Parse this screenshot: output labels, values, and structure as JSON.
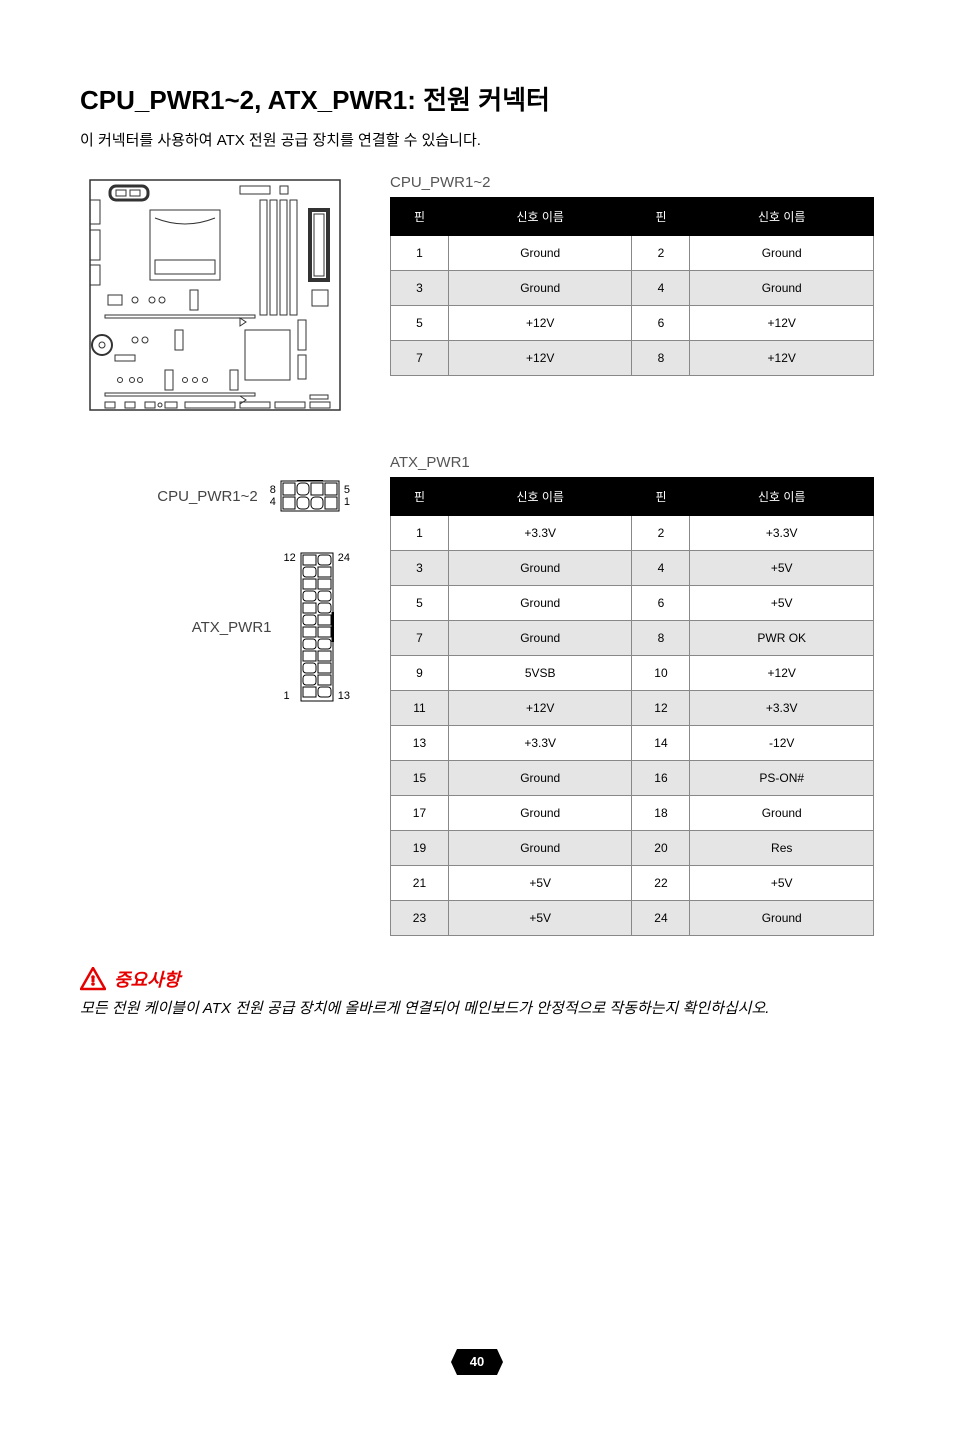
{
  "title": "CPU_PWR1~2, ATX_PWR1: 전원 커넥터",
  "intro": "이 커넥터를 사용하여 ATX 전원 공급 장치를 연결할 수 있습니다.",
  "cpuTable": {
    "title": "CPU_PWR1~2",
    "headers": [
      "핀",
      "신호 이름",
      "핀",
      "신호 이름"
    ],
    "rows": [
      [
        "1",
        "Ground",
        "2",
        "Ground"
      ],
      [
        "3",
        "Ground",
        "4",
        "Ground"
      ],
      [
        "5",
        "+12V",
        "6",
        "+12V"
      ],
      [
        "7",
        "+12V",
        "8",
        "+12V"
      ]
    ]
  },
  "atxTable": {
    "title": "ATX_PWR1",
    "headers": [
      "핀",
      "신호 이름",
      "핀",
      "신호 이름"
    ],
    "rows": [
      [
        "1",
        "+3.3V",
        "2",
        "+3.3V"
      ],
      [
        "3",
        "Ground",
        "4",
        "+5V"
      ],
      [
        "5",
        "Ground",
        "6",
        "+5V"
      ],
      [
        "7",
        "Ground",
        "8",
        "PWR OK"
      ],
      [
        "9",
        "5VSB",
        "10",
        "+12V"
      ],
      [
        "11",
        "+12V",
        "12",
        "+3.3V"
      ],
      [
        "13",
        "+3.3V",
        "14",
        "-12V"
      ],
      [
        "15",
        "Ground",
        "16",
        "PS-ON#"
      ],
      [
        "17",
        "Ground",
        "18",
        "Ground"
      ],
      [
        "19",
        "Ground",
        "20",
        "Res"
      ],
      [
        "21",
        "+5V",
        "22",
        "+5V"
      ],
      [
        "23",
        "+5V",
        "24",
        "Ground"
      ]
    ]
  },
  "cpuConn": {
    "label": "CPU_PWR1~2",
    "nums": {
      "tl": "8",
      "bl": "4",
      "tr": "5",
      "br": "1"
    }
  },
  "atxConn": {
    "label": "ATX_PWR1",
    "nums": {
      "tl": "12",
      "tr": "24",
      "bl": "1",
      "br": "13"
    }
  },
  "important": {
    "label": "중요사항",
    "text": "모든 전원 케이블이 ATX 전원 공급 장치에 올바르게 연결되어 메인보드가 안정적으로 작동하는지 확인하십시오."
  },
  "pageNumber": "40",
  "colors": {
    "accent": "#e60000",
    "tableHeaderBg": "#000000",
    "tableHeaderFg": "#ffffff",
    "altRowBg": "#e5e5e5",
    "border": "#888888"
  }
}
